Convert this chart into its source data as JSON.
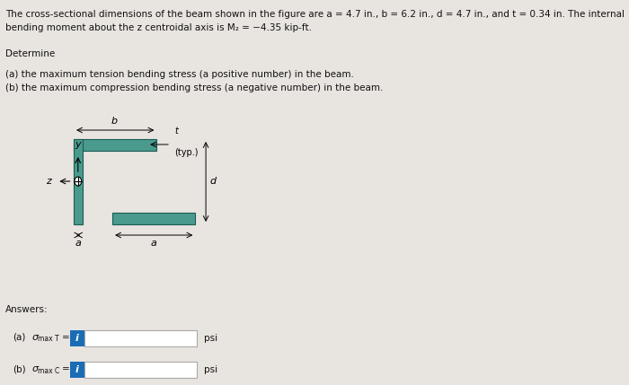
{
  "title_text": "The cross-sectional dimensions of the beam shown in the figure are a = 4.7 in., b = 6.2 in., d = 4.7 in., and t = 0.34 in. The internal\nbending moment about the z centroidal axis is M₂ = -4.35 kip-ft.",
  "determine_text": "Determine",
  "part_a_text": "(a) the maximum tension bending stress (a positive number) in the beam.",
  "part_b_text": "(b) the maximum compression bending stress (a negative number) in the beam.",
  "answers_text": "Answers:",
  "answer_a_label": "(a)   σ",
  "answer_a_sub": "max T",
  "answer_a_unit": "psi",
  "answer_b_label": "(b)   σ",
  "answer_b_sub": "max C",
  "answer_b_unit": "psi",
  "beam_color": "#4a9b8e",
  "bg_color": "#e8e4e0",
  "box_fill": "white",
  "i_button_color": "#1a6db5",
  "t_label": "t",
  "typ_label": "(typ.)",
  "b_label": "b",
  "y_label": "y",
  "z_label": "z",
  "a_label": "a",
  "d_label": "d"
}
